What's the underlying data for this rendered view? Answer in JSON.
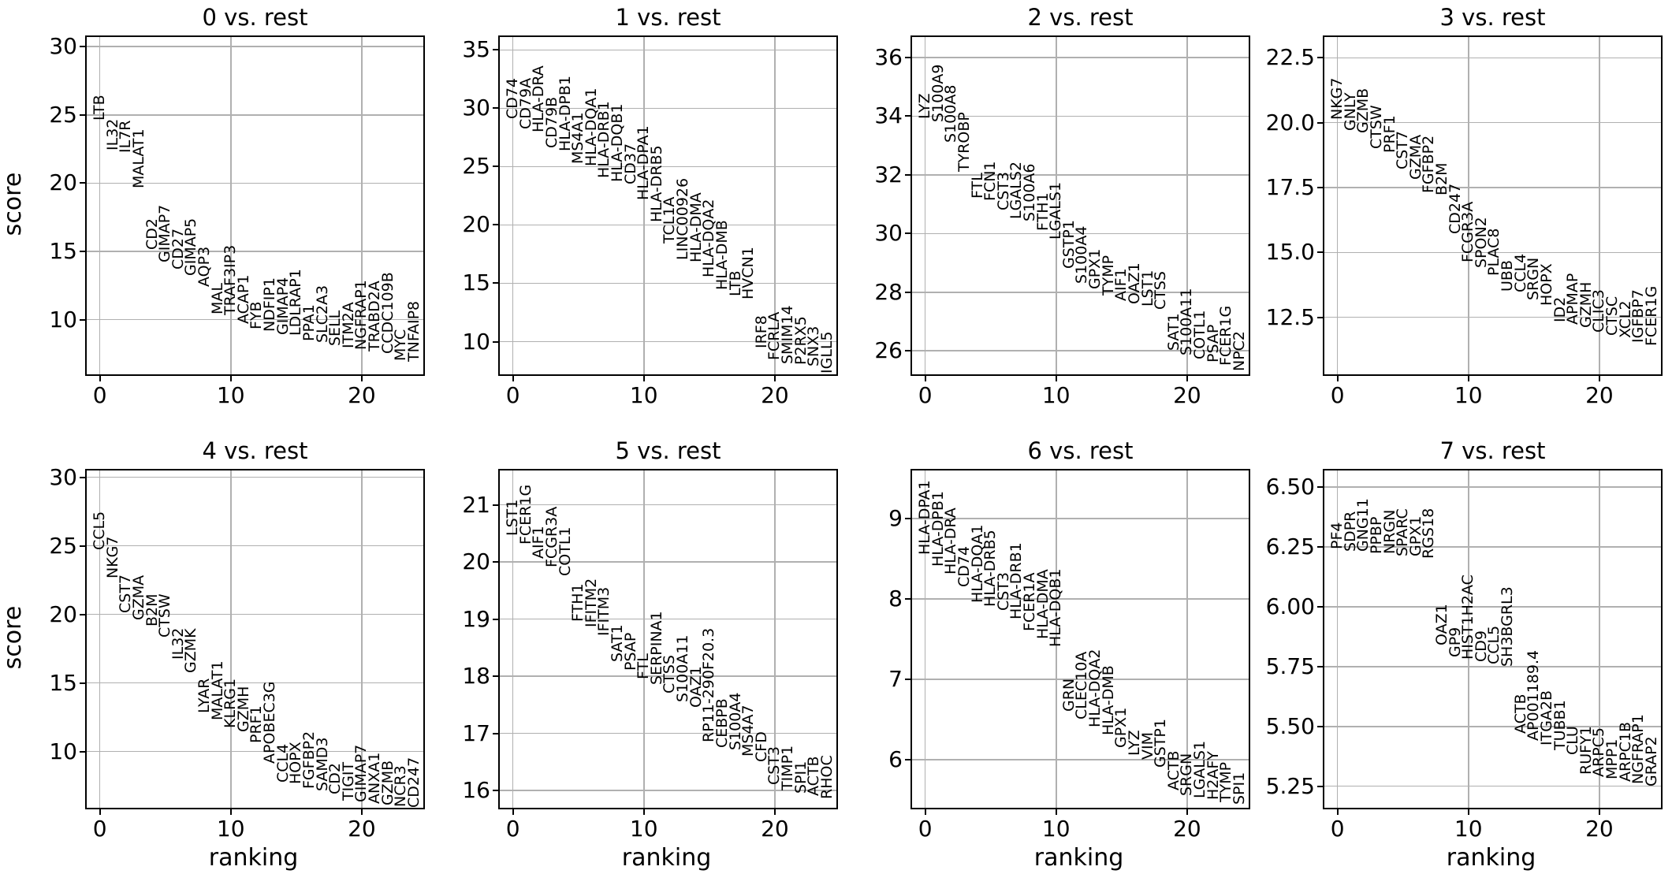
{
  "figure": {
    "background": "#ffffff",
    "text_color": "#000000",
    "grid_color": "#b0b0b0",
    "spine_color": "#000000",
    "ylabel": "score",
    "xlabel": "ranking",
    "xlim": [
      -1.0,
      24.7
    ],
    "x_ticks": [
      {
        "value": 0,
        "label": "0"
      },
      {
        "value": 10,
        "label": "10"
      },
      {
        "value": 20,
        "label": "20"
      }
    ]
  },
  "chart_data": [
    {
      "type": "scatter",
      "title": "0 vs. rest",
      "xlabel": "ranking",
      "ylabel": "score",
      "x_is_rank": true,
      "grid": true,
      "ylim": [
        6.0,
        30.7
      ],
      "yticks": [
        {
          "value": 10,
          "label": "10"
        },
        {
          "value": 15,
          "label": "15"
        },
        {
          "value": 20,
          "label": "20"
        },
        {
          "value": 25,
          "label": "25"
        },
        {
          "value": 30,
          "label": "30"
        }
      ],
      "genes": [
        {
          "gene": "LTB",
          "score": 24.6
        },
        {
          "gene": "IL32",
          "score": 22.4
        },
        {
          "gene": "IL7R",
          "score": 22.2
        },
        {
          "gene": "MALAT1",
          "score": 19.6
        },
        {
          "gene": "CD2",
          "score": 15.1
        },
        {
          "gene": "GIMAP7",
          "score": 14.2
        },
        {
          "gene": "CD27",
          "score": 13.7
        },
        {
          "gene": "GIMAP5",
          "score": 13.2
        },
        {
          "gene": "AQP3",
          "score": 12.4
        },
        {
          "gene": "MAL",
          "score": 10.4
        },
        {
          "gene": "TRAF3IP3",
          "score": 10.3
        },
        {
          "gene": "ACAP1",
          "score": 9.7
        },
        {
          "gene": "FYB",
          "score": 9.3
        },
        {
          "gene": "NDFIP1",
          "score": 9.1
        },
        {
          "gene": "GIMAP4",
          "score": 8.9
        },
        {
          "gene": "LDLRAP1",
          "score": 8.8
        },
        {
          "gene": "PPA1",
          "score": 8.4
        },
        {
          "gene": "SLC2A3",
          "score": 8.3
        },
        {
          "gene": "SELL",
          "score": 8.1
        },
        {
          "gene": "ITM2A",
          "score": 7.9
        },
        {
          "gene": "NGFRAP1",
          "score": 7.8
        },
        {
          "gene": "TRABD2A",
          "score": 7.7
        },
        {
          "gene": "CCDC109B",
          "score": 7.5
        },
        {
          "gene": "MYC",
          "score": 7.0
        },
        {
          "gene": "TNFAIP8",
          "score": 6.9
        }
      ]
    },
    {
      "type": "scatter",
      "title": "1 vs. rest",
      "xlabel": "ranking",
      "ylabel": "",
      "x_is_rank": true,
      "grid": true,
      "ylim": [
        7.2,
        36.1
      ],
      "yticks": [
        {
          "value": 10,
          "label": "10"
        },
        {
          "value": 15,
          "label": "15"
        },
        {
          "value": 20,
          "label": "20"
        },
        {
          "value": 25,
          "label": "25"
        },
        {
          "value": 30,
          "label": "30"
        },
        {
          "value": 35,
          "label": "35"
        }
      ],
      "genes": [
        {
          "gene": "CD74",
          "score": 29.1
        },
        {
          "gene": "CD79A",
          "score": 28.2
        },
        {
          "gene": "HLA-DRA",
          "score": 27.9
        },
        {
          "gene": "CD79B",
          "score": 26.6
        },
        {
          "gene": "HLA-DPB1",
          "score": 26.3
        },
        {
          "gene": "MS4A1",
          "score": 25.2
        },
        {
          "gene": "HLA-DQA1",
          "score": 25.0
        },
        {
          "gene": "HLA-DRB1",
          "score": 24.0
        },
        {
          "gene": "HLA-DQB1",
          "score": 23.7
        },
        {
          "gene": "CD37",
          "score": 23.5
        },
        {
          "gene": "HLA-DPA1",
          "score": 22.1
        },
        {
          "gene": "HLA-DRB5",
          "score": 20.2
        },
        {
          "gene": "TCL1A",
          "score": 18.4
        },
        {
          "gene": "LINC00926",
          "score": 17.0
        },
        {
          "gene": "HLA-DMA",
          "score": 16.8
        },
        {
          "gene": "HLA-DQA2",
          "score": 15.5
        },
        {
          "gene": "HLA-DMB",
          "score": 14.4
        },
        {
          "gene": "LTB",
          "score": 13.9
        },
        {
          "gene": "HVCN1",
          "score": 13.6
        },
        {
          "gene": "IRF8",
          "score": 9.4
        },
        {
          "gene": "FCRLA",
          "score": 8.4
        },
        {
          "gene": "SMIM14",
          "score": 8.1
        },
        {
          "gene": "P2RX5",
          "score": 8.0
        },
        {
          "gene": "SNX3",
          "score": 7.9
        },
        {
          "gene": "IGLL5",
          "score": 7.3
        }
      ]
    },
    {
      "type": "scatter",
      "title": "2 vs. rest",
      "xlabel": "ranking",
      "ylabel": "",
      "x_is_rank": true,
      "grid": true,
      "ylim": [
        25.2,
        36.7
      ],
      "yticks": [
        {
          "value": 26,
          "label": "26"
        },
        {
          "value": 28,
          "label": "28"
        },
        {
          "value": 30,
          "label": "30"
        },
        {
          "value": 32,
          "label": "32"
        },
        {
          "value": 34,
          "label": "34"
        },
        {
          "value": 36,
          "label": "36"
        }
      ],
      "genes": [
        {
          "gene": "LYZ",
          "score": 33.9
        },
        {
          "gene": "S100A9",
          "score": 33.8
        },
        {
          "gene": "S100A8",
          "score": 33.1
        },
        {
          "gene": "TYROBP",
          "score": 32.1
        },
        {
          "gene": "FTL",
          "score": 31.2
        },
        {
          "gene": "FCN1",
          "score": 31.1
        },
        {
          "gene": "CST3",
          "score": 30.8
        },
        {
          "gene": "LGALS2",
          "score": 30.5
        },
        {
          "gene": "S100A6",
          "score": 30.4
        },
        {
          "gene": "FTH1",
          "score": 30.1
        },
        {
          "gene": "LGALS1",
          "score": 29.8
        },
        {
          "gene": "GSTP1",
          "score": 28.8
        },
        {
          "gene": "S100A4",
          "score": 28.3
        },
        {
          "gene": "GPX1",
          "score": 28.1
        },
        {
          "gene": "TYMP",
          "score": 27.9
        },
        {
          "gene": "AIF1",
          "score": 27.7
        },
        {
          "gene": "OAZ1",
          "score": 27.6
        },
        {
          "gene": "LST1",
          "score": 27.5
        },
        {
          "gene": "CTSS",
          "score": 27.4
        },
        {
          "gene": "SAT1",
          "score": 26.0
        },
        {
          "gene": "S100A11",
          "score": 25.85
        },
        {
          "gene": "COTL1",
          "score": 25.7
        },
        {
          "gene": "PSAP",
          "score": 25.6
        },
        {
          "gene": "FCER1G",
          "score": 25.5
        },
        {
          "gene": "NPC2",
          "score": 25.3
        }
      ]
    },
    {
      "type": "scatter",
      "title": "3 vs. rest",
      "xlabel": "ranking",
      "ylabel": "",
      "x_is_rank": true,
      "grid": true,
      "ylim": [
        10.3,
        23.3
      ],
      "yticks": [
        {
          "value": 12.5,
          "label": "12.5"
        },
        {
          "value": 15.0,
          "label": "15.0"
        },
        {
          "value": 17.5,
          "label": "17.5"
        },
        {
          "value": 20.0,
          "label": "20.0"
        },
        {
          "value": 22.5,
          "label": "22.5"
        }
      ],
      "genes": [
        {
          "gene": "NKG7",
          "score": 20.1
        },
        {
          "gene": "GNLY",
          "score": 19.7
        },
        {
          "gene": "GZMB",
          "score": 19.6
        },
        {
          "gene": "CTSW",
          "score": 19.0
        },
        {
          "gene": "PRF1",
          "score": 18.85
        },
        {
          "gene": "CST7",
          "score": 18.2
        },
        {
          "gene": "GZMA",
          "score": 17.8
        },
        {
          "gene": "FGFBP2",
          "score": 17.3
        },
        {
          "gene": "B2M",
          "score": 17.2
        },
        {
          "gene": "CD247",
          "score": 15.7
        },
        {
          "gene": "FCGR3A",
          "score": 14.6
        },
        {
          "gene": "SPON2",
          "score": 14.4
        },
        {
          "gene": "PLAC8",
          "score": 14.1
        },
        {
          "gene": "UBB",
          "score": 13.5
        },
        {
          "gene": "CCL4",
          "score": 13.45
        },
        {
          "gene": "SRGN",
          "score": 13.15
        },
        {
          "gene": "HOPX",
          "score": 12.95
        },
        {
          "gene": "ID2",
          "score": 12.3
        },
        {
          "gene": "APMAP",
          "score": 12.2
        },
        {
          "gene": "GZMH",
          "score": 12.1
        },
        {
          "gene": "CLIC3",
          "score": 11.9
        },
        {
          "gene": "CTSC",
          "score": 11.8
        },
        {
          "gene": "XCL2",
          "score": 11.7
        },
        {
          "gene": "IGFBP7",
          "score": 11.5
        },
        {
          "gene": "FCER1G",
          "score": 11.4
        }
      ]
    },
    {
      "type": "scatter",
      "title": "4 vs. rest",
      "xlabel": "ranking",
      "ylabel": "score",
      "x_is_rank": true,
      "grid": true,
      "ylim": [
        5.9,
        30.5
      ],
      "yticks": [
        {
          "value": 10,
          "label": "10"
        },
        {
          "value": 15,
          "label": "15"
        },
        {
          "value": 20,
          "label": "20"
        },
        {
          "value": 25,
          "label": "25"
        },
        {
          "value": 30,
          "label": "30"
        }
      ],
      "genes": [
        {
          "gene": "CCL5",
          "score": 24.7
        },
        {
          "gene": "NKG7",
          "score": 22.6
        },
        {
          "gene": "CST7",
          "score": 20.1
        },
        {
          "gene": "GZMA",
          "score": 19.6
        },
        {
          "gene": "B2M",
          "score": 19.1
        },
        {
          "gene": "CTSW",
          "score": 18.3
        },
        {
          "gene": "IL32",
          "score": 16.7
        },
        {
          "gene": "GZMK",
          "score": 15.7
        },
        {
          "gene": "LYAR",
          "score": 12.8
        },
        {
          "gene": "MALAT1",
          "score": 12.3
        },
        {
          "gene": "KLRG1",
          "score": 11.7
        },
        {
          "gene": "GZMH",
          "score": 11.4
        },
        {
          "gene": "PRF1",
          "score": 10.6
        },
        {
          "gene": "APOBEC3G",
          "score": 9.1
        },
        {
          "gene": "CCL4",
          "score": 7.75
        },
        {
          "gene": "HOPX",
          "score": 7.6
        },
        {
          "gene": "FGFBP2",
          "score": 7.3
        },
        {
          "gene": "SAMD3",
          "score": 7.1
        },
        {
          "gene": "CD2",
          "score": 6.9
        },
        {
          "gene": "TIGIT",
          "score": 6.4
        },
        {
          "gene": "GIMAP7",
          "score": 6.3
        },
        {
          "gene": "ANXA1",
          "score": 6.2
        },
        {
          "gene": "GZMB",
          "score": 6.1
        },
        {
          "gene": "NCR3",
          "score": 5.95
        },
        {
          "gene": "CD247",
          "score": 5.9
        }
      ]
    },
    {
      "type": "scatter",
      "title": "5 vs. rest",
      "xlabel": "ranking",
      "ylabel": "",
      "x_is_rank": true,
      "grid": true,
      "ylim": [
        15.7,
        21.6
      ],
      "yticks": [
        {
          "value": 16,
          "label": "16"
        },
        {
          "value": 17,
          "label": "17"
        },
        {
          "value": 18,
          "label": "18"
        },
        {
          "value": 19,
          "label": "19"
        },
        {
          "value": 20,
          "label": "20"
        },
        {
          "value": 21,
          "label": "21"
        }
      ],
      "genes": [
        {
          "gene": "LST1",
          "score": 20.45
        },
        {
          "gene": "FCER1G",
          "score": 20.3
        },
        {
          "gene": "AIF1",
          "score": 20.05
        },
        {
          "gene": "FCGR3A",
          "score": 19.9
        },
        {
          "gene": "COTL1",
          "score": 19.75
        },
        {
          "gene": "FTH1",
          "score": 18.95
        },
        {
          "gene": "IFITM2",
          "score": 18.85
        },
        {
          "gene": "IFITM3",
          "score": 18.7
        },
        {
          "gene": "SAT1",
          "score": 18.25
        },
        {
          "gene": "PSAP",
          "score": 18.1
        },
        {
          "gene": "FTL",
          "score": 17.95
        },
        {
          "gene": "SERPINA1",
          "score": 17.85
        },
        {
          "gene": "CTSS",
          "score": 17.7
        },
        {
          "gene": "S100A11",
          "score": 17.55
        },
        {
          "gene": "OAZ1",
          "score": 17.45
        },
        {
          "gene": "RP11-290F20.3",
          "score": 16.85
        },
        {
          "gene": "CEBPB",
          "score": 16.75
        },
        {
          "gene": "S100A4",
          "score": 16.7
        },
        {
          "gene": "MS4A7",
          "score": 16.6
        },
        {
          "gene": "CFD",
          "score": 16.5
        },
        {
          "gene": "CST3",
          "score": 16.1
        },
        {
          "gene": "TIMP1",
          "score": 16.0
        },
        {
          "gene": "SPI1",
          "score": 15.95
        },
        {
          "gene": "ACTB",
          "score": 15.9
        },
        {
          "gene": "RHOC",
          "score": 15.85
        }
      ]
    },
    {
      "type": "scatter",
      "title": "6 vs. rest",
      "xlabel": "ranking",
      "ylabel": "",
      "x_is_rank": true,
      "grid": true,
      "ylim": [
        5.4,
        9.6
      ],
      "yticks": [
        {
          "value": 6,
          "label": "6"
        },
        {
          "value": 7,
          "label": "7"
        },
        {
          "value": 8,
          "label": "8"
        },
        {
          "value": 9,
          "label": "9"
        }
      ],
      "genes": [
        {
          "gene": "HLA-DPA1",
          "score": 8.55
        },
        {
          "gene": "HLA-DPB1",
          "score": 8.4
        },
        {
          "gene": "HLA-DRA",
          "score": 8.3
        },
        {
          "gene": "CD74",
          "score": 8.15
        },
        {
          "gene": "HLA-DQA1",
          "score": 7.95
        },
        {
          "gene": "HLA-DRB5",
          "score": 7.9
        },
        {
          "gene": "CST3",
          "score": 7.85
        },
        {
          "gene": "HLA-DRB1",
          "score": 7.75
        },
        {
          "gene": "FCER1A",
          "score": 7.6
        },
        {
          "gene": "HLA-DMA",
          "score": 7.5
        },
        {
          "gene": "HLA-DQB1",
          "score": 7.4
        },
        {
          "gene": "GRN",
          "score": 6.6
        },
        {
          "gene": "CLEC10A",
          "score": 6.5
        },
        {
          "gene": "HLA-DQA2",
          "score": 6.4
        },
        {
          "gene": "HLA-DMB",
          "score": 6.3
        },
        {
          "gene": "GPX1",
          "score": 6.15
        },
        {
          "gene": "LYZ",
          "score": 6.05
        },
        {
          "gene": "VIM",
          "score": 6.0
        },
        {
          "gene": "GSTP1",
          "score": 5.9
        },
        {
          "gene": "ACTB",
          "score": 5.62
        },
        {
          "gene": "SRGN",
          "score": 5.55
        },
        {
          "gene": "LGALS1",
          "score": 5.52
        },
        {
          "gene": "H2AFY",
          "score": 5.5
        },
        {
          "gene": "TYMP",
          "score": 5.47
        },
        {
          "gene": "SPI1",
          "score": 5.44
        }
      ]
    },
    {
      "type": "scatter",
      "title": "7 vs. rest",
      "xlabel": "ranking",
      "ylabel": "",
      "x_is_rank": true,
      "grid": true,
      "ylim": [
        5.16,
        6.57
      ],
      "yticks": [
        {
          "value": 5.25,
          "label": "5.25"
        },
        {
          "value": 5.5,
          "label": "5.50"
        },
        {
          "value": 5.75,
          "label": "5.75"
        },
        {
          "value": 6.0,
          "label": "6.00"
        },
        {
          "value": 6.25,
          "label": "6.25"
        },
        {
          "value": 6.5,
          "label": "6.50"
        }
      ],
      "genes": [
        {
          "gene": "PF4",
          "score": 6.24
        },
        {
          "gene": "SDPR",
          "score": 6.23
        },
        {
          "gene": "GNG11",
          "score": 6.23
        },
        {
          "gene": "PPBP",
          "score": 6.22
        },
        {
          "gene": "NRGN",
          "score": 6.22
        },
        {
          "gene": "SPARC",
          "score": 6.21
        },
        {
          "gene": "GPX1",
          "score": 6.21
        },
        {
          "gene": "RGS18",
          "score": 6.2
        },
        {
          "gene": "OAZ1",
          "score": 5.84
        },
        {
          "gene": "GP9",
          "score": 5.79
        },
        {
          "gene": "HIST1H2AC",
          "score": 5.78
        },
        {
          "gene": "CD9",
          "score": 5.77
        },
        {
          "gene": "CCL5",
          "score": 5.76
        },
        {
          "gene": "SH3BGRL3",
          "score": 5.75
        },
        {
          "gene": "ACTB",
          "score": 5.47
        },
        {
          "gene": "AP001189.4",
          "score": 5.44
        },
        {
          "gene": "ITGA2B",
          "score": 5.42
        },
        {
          "gene": "TUBB1",
          "score": 5.4
        },
        {
          "gene": "CLU",
          "score": 5.38
        },
        {
          "gene": "RUFY1",
          "score": 5.3
        },
        {
          "gene": "ARPC5",
          "score": 5.29
        },
        {
          "gene": "MPP1",
          "score": 5.28
        },
        {
          "gene": "ARPC1B",
          "score": 5.27
        },
        {
          "gene": "NGFRAP1",
          "score": 5.26
        },
        {
          "gene": "GRAP2",
          "score": 5.25
        }
      ]
    }
  ]
}
